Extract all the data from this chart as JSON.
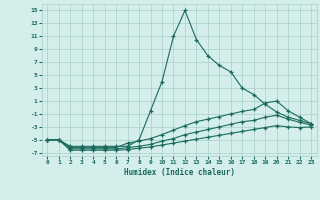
{
  "xlabel": "Humidex (Indice chaleur)",
  "xlim": [
    -0.5,
    23.5
  ],
  "ylim": [
    -7.5,
    16
  ],
  "yticks": [
    -7,
    -5,
    -3,
    -1,
    1,
    3,
    5,
    7,
    9,
    11,
    13,
    15
  ],
  "xticks": [
    0,
    1,
    2,
    3,
    4,
    5,
    6,
    7,
    8,
    9,
    10,
    11,
    12,
    13,
    14,
    15,
    16,
    17,
    18,
    19,
    20,
    21,
    22,
    23
  ],
  "background_color": "#d4eeeb",
  "grid_color": "#a8cfc9",
  "line_color": "#1a6b5e",
  "lines": [
    {
      "x": [
        0,
        1,
        2,
        3,
        4,
        5,
        6,
        7,
        8,
        9,
        10,
        11,
        12,
        13,
        14,
        15,
        16,
        17,
        18,
        19,
        20,
        21,
        22,
        23
      ],
      "y": [
        -5,
        -5,
        -6,
        -6,
        -6,
        -6,
        -6,
        -6,
        -5,
        -0.5,
        4,
        11,
        15,
        10.5,
        8,
        6.5,
        5.5,
        3,
        2,
        0.5,
        -0.7,
        -1.5,
        -2,
        -2.5
      ]
    },
    {
      "x": [
        0,
        1,
        2,
        3,
        4,
        5,
        6,
        7,
        8,
        9,
        10,
        11,
        12,
        13,
        14,
        15,
        16,
        17,
        18,
        19,
        20,
        21,
        22,
        23
      ],
      "y": [
        -5,
        -5,
        -6.2,
        -6.2,
        -6.2,
        -6.2,
        -6.2,
        -5.5,
        -5.2,
        -4.8,
        -4.2,
        -3.5,
        -2.8,
        -2.2,
        -1.8,
        -1.4,
        -1.0,
        -0.6,
        -0.3,
        0.7,
        1.0,
        -0.5,
        -1.5,
        -2.5
      ]
    },
    {
      "x": [
        0,
        1,
        2,
        3,
        4,
        5,
        6,
        7,
        8,
        9,
        10,
        11,
        12,
        13,
        14,
        15,
        16,
        17,
        18,
        19,
        20,
        21,
        22,
        23
      ],
      "y": [
        -5,
        -5,
        -6.4,
        -6.4,
        -6.4,
        -6.4,
        -6.4,
        -6.2,
        -6.0,
        -5.7,
        -5.2,
        -4.8,
        -4.2,
        -3.8,
        -3.4,
        -3.0,
        -2.6,
        -2.2,
        -2.0,
        -1.5,
        -1.2,
        -1.8,
        -2.3,
        -2.7
      ]
    },
    {
      "x": [
        0,
        1,
        2,
        3,
        4,
        5,
        6,
        7,
        8,
        9,
        10,
        11,
        12,
        13,
        14,
        15,
        16,
        17,
        18,
        19,
        20,
        21,
        22,
        23
      ],
      "y": [
        -5,
        -5,
        -6.6,
        -6.6,
        -6.6,
        -6.6,
        -6.6,
        -6.5,
        -6.3,
        -6.1,
        -5.8,
        -5.5,
        -5.2,
        -4.9,
        -4.6,
        -4.3,
        -4.0,
        -3.7,
        -3.4,
        -3.1,
        -2.8,
        -3.0,
        -3.1,
        -3.0
      ]
    }
  ]
}
